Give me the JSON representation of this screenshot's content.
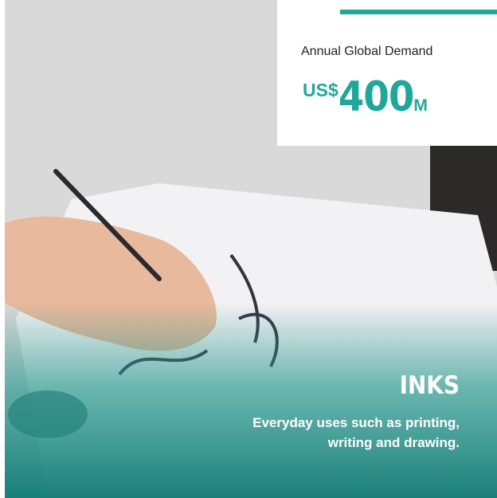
{
  "card": {
    "stat_label": "Annual Global Demand",
    "stat_prefix": "US$",
    "stat_value": "400",
    "stat_suffix": "M",
    "title": "INKS",
    "description": "Everyday uses such as printing, writing and drawing."
  }
}
